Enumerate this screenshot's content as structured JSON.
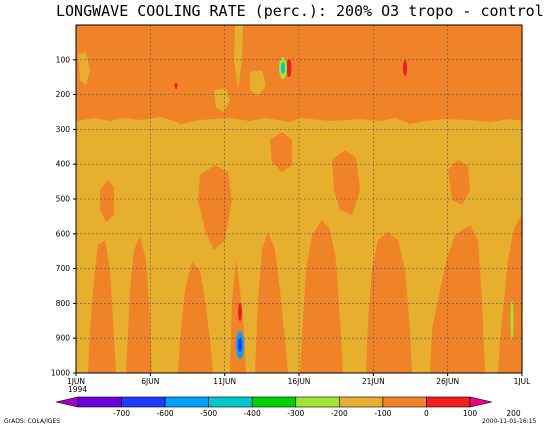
{
  "chart_data": {
    "type": "heatmap",
    "title": "LONGWAVE COOLING RATE (perc.): 200% O3 tropo - control",
    "x_ticks": [
      "1JUN",
      "6JUN",
      "11JUN",
      "16JUN",
      "21JUN",
      "26JUN",
      "1JUL"
    ],
    "x_year_label": "1994",
    "x_range": [
      "1JUN1994",
      "1JUL1994"
    ],
    "y_ticks": [
      100,
      200,
      300,
      400,
      500,
      600,
      700,
      800,
      900,
      1000
    ],
    "y_range": [
      0,
      1000
    ],
    "y_reversed": true,
    "grid": true,
    "background_value_label": "0 to 100",
    "colorbar": {
      "labels": [
        "-700",
        "-600",
        "-500",
        "-400",
        "-300",
        "-200",
        "-100",
        "0",
        "100",
        "200"
      ],
      "colors": [
        "#a000c8",
        "#6e00dc",
        "#1e3cff",
        "#00a0ff",
        "#00c8c8",
        "#00d200",
        "#a0e632",
        "#e6af2d",
        "#f08228",
        "#f01e1e",
        "#f00082"
      ]
    },
    "regions": [
      {
        "bin": "-100 to 0",
        "description": "mid-troposphere band 300-1000 hPa"
      },
      {
        "bin": "-700 to -300",
        "near": "11JUN, 850-920 hPa"
      },
      {
        "bin": "-300 to -200",
        "near": "15JUN, 140-170 hPa"
      },
      {
        "bin": "100 to 200",
        "near": "15JUN 150 hPa, 22JUN 150 hPa, 8JUN 200 hPa, 11JUN 780-830 hPa"
      }
    ]
  },
  "footer": {
    "left": "GrADS: COLA/IGES",
    "right": "2000-11-01-16:15"
  }
}
